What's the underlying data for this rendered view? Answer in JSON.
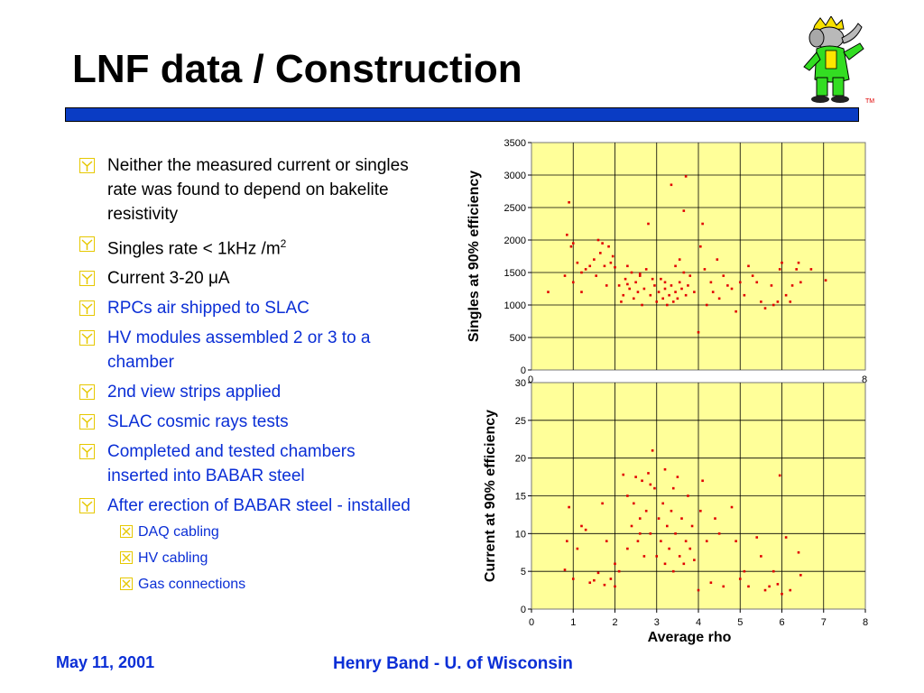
{
  "slide": {
    "title": "LNF data / Construction",
    "footer_date": "May 11, 2001",
    "footer_author": "Henry Band -  U. of Wisconsin",
    "logo_tm": "TM"
  },
  "bullets": [
    {
      "text": "Neither the measured current or singles rate  was found to depend on bakelite resistivity",
      "color": "#000000"
    },
    {
      "text": "Singles rate < 1kHz /m",
      "superscript": "2",
      "color": "#000000"
    },
    {
      "text": "Current 3-20 μA",
      "color": "#000000"
    },
    {
      "text": "RPCs air shipped to SLAC",
      "color": "#0b2fd6"
    },
    {
      "text": "HV modules assembled 2 or 3 to a chamber",
      "color": "#0b2fd6"
    },
    {
      "text": "2nd view strips applied",
      "color": "#0b2fd6"
    },
    {
      "text": "SLAC cosmic rays tests",
      "color": "#0b2fd6"
    },
    {
      "text": "Completed and tested chambers inserted into BABAR steel",
      "color": "#0b2fd6"
    },
    {
      "text": "After erection of BABAR steel - installed",
      "color": "#0b2fd6"
    }
  ],
  "sub_bullets": [
    "DAQ cabling",
    "HV cabling",
    "Gas connections"
  ],
  "colors": {
    "plot_bg": "#ffff99",
    "points": "#e00000",
    "text_blue": "#0b2fd6",
    "bar": "#0a3cc4"
  },
  "chart_data": [
    {
      "type": "scatter",
      "ylabel": "Singles at 90% efficiency",
      "xlabel": "",
      "xlim": [
        0,
        8
      ],
      "ylim": [
        0,
        3500
      ],
      "yticks": [
        0,
        500,
        1000,
        1500,
        2000,
        2500,
        3000,
        3500
      ],
      "xticks_visible": [
        "0",
        "8"
      ],
      "grid": true,
      "points": [
        [
          0.4,
          1200
        ],
        [
          0.8,
          1450
        ],
        [
          0.85,
          2080
        ],
        [
          0.9,
          2580
        ],
        [
          0.95,
          1900
        ],
        [
          1.0,
          1950
        ],
        [
          1.0,
          1350
        ],
        [
          1.1,
          1650
        ],
        [
          1.2,
          1200
        ],
        [
          1.2,
          1500
        ],
        [
          1.3,
          1550
        ],
        [
          1.4,
          1600
        ],
        [
          1.5,
          1700
        ],
        [
          1.55,
          1450
        ],
        [
          1.6,
          2000
        ],
        [
          1.65,
          1800
        ],
        [
          1.7,
          1950
        ],
        [
          1.75,
          1600
        ],
        [
          1.8,
          1300
        ],
        [
          1.85,
          1900
        ],
        [
          1.9,
          1650
        ],
        [
          1.95,
          1750
        ],
        [
          2.0,
          1580
        ],
        [
          2.1,
          1300
        ],
        [
          2.15,
          1050
        ],
        [
          2.2,
          1150
        ],
        [
          2.25,
          1400
        ],
        [
          2.3,
          1600
        ],
        [
          2.35,
          1250
        ],
        [
          2.4,
          1500
        ],
        [
          2.45,
          1100
        ],
        [
          2.5,
          1350
        ],
        [
          2.55,
          1200
        ],
        [
          2.6,
          1450
        ],
        [
          2.65,
          1000
        ],
        [
          2.7,
          1250
        ],
        [
          2.75,
          1550
        ],
        [
          2.8,
          2250
        ],
        [
          2.85,
          1150
        ],
        [
          2.9,
          1400
        ],
        [
          2.95,
          1300
        ],
        [
          3.0,
          1050
        ],
        [
          3.05,
          1200
        ],
        [
          3.1,
          1400
        ],
        [
          3.15,
          1100
        ],
        [
          3.2,
          1250
        ],
        [
          3.25,
          1000
        ],
        [
          3.3,
          1150
        ],
        [
          3.35,
          1300
        ],
        [
          3.4,
          1050
        ],
        [
          3.45,
          1200
        ],
        [
          3.5,
          1100
        ],
        [
          3.55,
          1350
        ],
        [
          3.6,
          1250
        ],
        [
          3.65,
          1500
        ],
        [
          3.7,
          1150
        ],
        [
          3.75,
          1300
        ],
        [
          3.8,
          1450
        ],
        [
          3.35,
          2850
        ],
        [
          3.65,
          2450
        ],
        [
          3.7,
          2980
        ],
        [
          3.45,
          1600
        ],
        [
          3.55,
          1700
        ],
        [
          3.9,
          1200
        ],
        [
          4.0,
          580
        ],
        [
          4.05,
          1900
        ],
        [
          4.1,
          2250
        ],
        [
          4.15,
          1550
        ],
        [
          4.2,
          1000
        ],
        [
          4.3,
          1350
        ],
        [
          4.35,
          1200
        ],
        [
          4.45,
          1700
        ],
        [
          4.5,
          1100
        ],
        [
          4.6,
          1450
        ],
        [
          4.7,
          1300
        ],
        [
          4.8,
          1250
        ],
        [
          4.9,
          900
        ],
        [
          5.0,
          1350
        ],
        [
          5.1,
          1150
        ],
        [
          5.2,
          1600
        ],
        [
          5.3,
          1450
        ],
        [
          5.4,
          1350
        ],
        [
          5.5,
          1050
        ],
        [
          5.6,
          950
        ],
        [
          5.75,
          1300
        ],
        [
          5.8,
          1000
        ],
        [
          5.9,
          1050
        ],
        [
          6.0,
          1650
        ],
        [
          6.1,
          1150
        ],
        [
          6.25,
          1300
        ],
        [
          6.35,
          1550
        ],
        [
          6.4,
          1650
        ],
        [
          6.45,
          1350
        ],
        [
          7.05,
          1380
        ],
        [
          6.7,
          1550
        ],
        [
          6.2,
          1050
        ],
        [
          5.95,
          1550
        ],
        [
          2.3,
          1320
        ],
        [
          2.6,
          1480
        ],
        [
          3.2,
          1350
        ]
      ]
    },
    {
      "type": "scatter",
      "ylabel": "Current at 90% efficiency",
      "xlabel": "Average rho",
      "xlim": [
        0,
        8
      ],
      "ylim": [
        0,
        30
      ],
      "xticks": [
        0,
        1,
        2,
        3,
        4,
        5,
        6,
        7,
        8
      ],
      "yticks": [
        0,
        5,
        10,
        15,
        20,
        25,
        30
      ],
      "grid": true,
      "points": [
        [
          0.8,
          5.2
        ],
        [
          0.85,
          9
        ],
        [
          0.9,
          13.5
        ],
        [
          1.0,
          4
        ],
        [
          1.1,
          8
        ],
        [
          1.2,
          11
        ],
        [
          1.3,
          10.5
        ],
        [
          1.4,
          3.5
        ],
        [
          1.5,
          3.8
        ],
        [
          1.6,
          4.8
        ],
        [
          1.7,
          14
        ],
        [
          1.75,
          3.2
        ],
        [
          1.8,
          9
        ],
        [
          1.9,
          4
        ],
        [
          2.0,
          3
        ],
        [
          2.0,
          6
        ],
        [
          2.1,
          5
        ],
        [
          2.2,
          17.8
        ],
        [
          2.3,
          8
        ],
        [
          2.4,
          11
        ],
        [
          2.45,
          14
        ],
        [
          2.5,
          17.5
        ],
        [
          2.55,
          9
        ],
        [
          2.6,
          12
        ],
        [
          2.65,
          17
        ],
        [
          2.7,
          7
        ],
        [
          2.75,
          13
        ],
        [
          2.8,
          18
        ],
        [
          2.85,
          10
        ],
        [
          2.9,
          21
        ],
        [
          2.95,
          16
        ],
        [
          3.0,
          7
        ],
        [
          3.05,
          12
        ],
        [
          3.1,
          9
        ],
        [
          3.15,
          14
        ],
        [
          3.2,
          6
        ],
        [
          3.25,
          11
        ],
        [
          3.3,
          8
        ],
        [
          3.35,
          13
        ],
        [
          3.4,
          5
        ],
        [
          3.45,
          10
        ],
        [
          3.5,
          17.5
        ],
        [
          3.55,
          7
        ],
        [
          3.6,
          12
        ],
        [
          3.65,
          6
        ],
        [
          3.7,
          9
        ],
        [
          3.75,
          15
        ],
        [
          3.8,
          8
        ],
        [
          3.85,
          11
        ],
        [
          3.9,
          6.5
        ],
        [
          4.0,
          2.5
        ],
        [
          4.05,
          13
        ],
        [
          4.1,
          17
        ],
        [
          4.2,
          9
        ],
        [
          4.3,
          3.5
        ],
        [
          4.4,
          12
        ],
        [
          4.5,
          10
        ],
        [
          4.6,
          3
        ],
        [
          4.8,
          13.5
        ],
        [
          4.9,
          9
        ],
        [
          5.0,
          4
        ],
        [
          5.1,
          5
        ],
        [
          5.2,
          3
        ],
        [
          5.4,
          9.5
        ],
        [
          5.5,
          7
        ],
        [
          5.6,
          2.5
        ],
        [
          5.7,
          3
        ],
        [
          5.8,
          5
        ],
        [
          5.9,
          3.3
        ],
        [
          5.95,
          17.7
        ],
        [
          6.0,
          2
        ],
        [
          6.1,
          9.5
        ],
        [
          6.2,
          2.5
        ],
        [
          6.4,
          7.5
        ],
        [
          6.45,
          4.5
        ],
        [
          2.3,
          15
        ],
        [
          2.6,
          10
        ],
        [
          3.4,
          16
        ],
        [
          3.2,
          18.5
        ],
        [
          2.85,
          16.5
        ]
      ]
    }
  ]
}
